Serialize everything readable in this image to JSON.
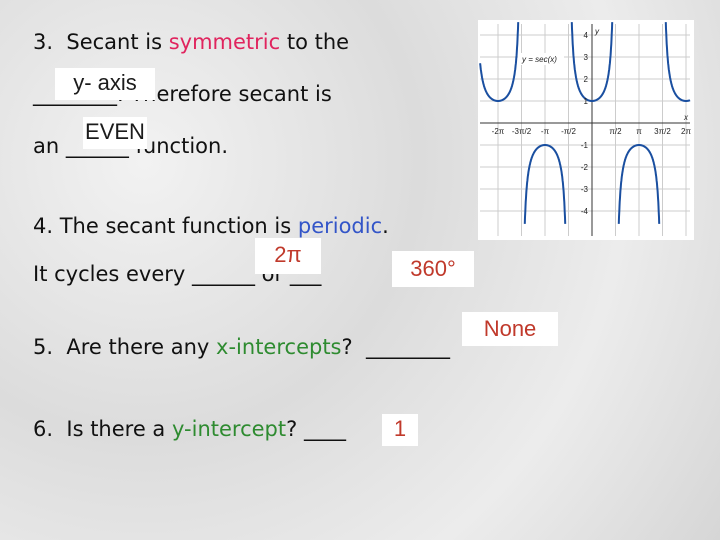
{
  "item3": {
    "text_a": "3.  Secant is ",
    "keyword": "symmetric",
    "text_b": " to the",
    "line2": "________. Therefore secant is",
    "answer_1": "y- axis",
    "line3": "an ______ function.",
    "answer_2": "EVEN"
  },
  "item4": {
    "text_a": "4. The secant function is ",
    "keyword": "periodic",
    "text_b": ".",
    "line2": "It cycles every ______ or ___",
    "answer_1": "2π",
    "answer_2": "360°"
  },
  "item5": {
    "text_a": "5.  Are there any ",
    "keyword": "x-intercepts",
    "text_b": "?  ________",
    "answer": "None"
  },
  "item6": {
    "text_a": "6.  Is there a ",
    "keyword": "y-intercept",
    "text_b": "? ____",
    "answer": "1"
  },
  "graph": {
    "function_label": "y = sec(x)",
    "x_axis_label": "x",
    "y_axis_label": "y",
    "x_tick_labels": [
      "-2π",
      "-3π/2",
      "-π",
      "-π/2",
      "π/2",
      "π",
      "3π/2",
      "2π"
    ],
    "y_tick_labels": [
      "4",
      "3",
      "2",
      "1",
      "-1",
      "-2",
      "-3",
      "-4"
    ]
  }
}
